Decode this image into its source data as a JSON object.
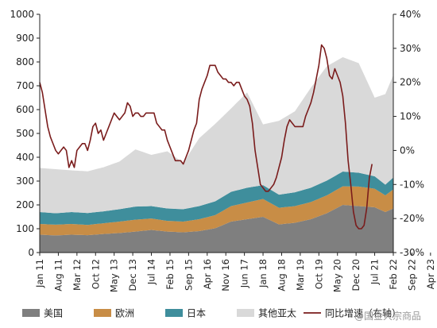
{
  "chart_data": {
    "type": "area",
    "x_labels": [
      "Jan 11",
      "Aug 11",
      "Mar 12",
      "Oct 12",
      "May 13",
      "Dec 13",
      "Jul 14",
      "Feb 15",
      "Sep 15",
      "Apr 16",
      "Nov 16",
      "Jun 17",
      "Jan 18",
      "Aug 18",
      "Mar 19",
      "Oct 19",
      "May 20",
      "Dec 20",
      "Jul 21",
      "Feb 22",
      "Sep 22",
      "Apr 23"
    ],
    "x_start": "2011-01",
    "x_end": "2023-10",
    "ylim_left": [
      0,
      1000
    ],
    "yticks_left": [
      "0",
      "100",
      "200",
      "300",
      "400",
      "500",
      "600",
      "700",
      "800",
      "900",
      "1000"
    ],
    "ylim_right": [
      -30,
      40
    ],
    "yticks_right": [
      "-30%",
      "-20%",
      "-10%",
      "0%",
      "10%",
      "20%",
      "30%",
      "40%"
    ],
    "series": [
      {
        "name": "美国",
        "type": "stacked-area",
        "color": "#7f7f7f",
        "points": [
          [
            0,
            75
          ],
          [
            6,
            72
          ],
          [
            12,
            75
          ],
          [
            18,
            73
          ],
          [
            24,
            78
          ],
          [
            30,
            82
          ],
          [
            36,
            88
          ],
          [
            42,
            95
          ],
          [
            48,
            88
          ],
          [
            54,
            85
          ],
          [
            60,
            90
          ],
          [
            66,
            102
          ],
          [
            72,
            130
          ],
          [
            78,
            140
          ],
          [
            84,
            150
          ],
          [
            90,
            118
          ],
          [
            96,
            125
          ],
          [
            102,
            140
          ],
          [
            108,
            165
          ],
          [
            114,
            200
          ],
          [
            120,
            195
          ],
          [
            126,
            190
          ],
          [
            130,
            170
          ],
          [
            133,
            185
          ]
        ]
      },
      {
        "name": "欧洲",
        "type": "stacked-area",
        "color": "#c88d46",
        "points": [
          [
            0,
            45
          ],
          [
            6,
            45
          ],
          [
            12,
            45
          ],
          [
            18,
            43
          ],
          [
            24,
            45
          ],
          [
            30,
            48
          ],
          [
            36,
            50
          ],
          [
            42,
            48
          ],
          [
            48,
            45
          ],
          [
            54,
            45
          ],
          [
            60,
            50
          ],
          [
            66,
            55
          ],
          [
            72,
            65
          ],
          [
            78,
            70
          ],
          [
            84,
            75
          ],
          [
            90,
            70
          ],
          [
            96,
            70
          ],
          [
            102,
            72
          ],
          [
            108,
            75
          ],
          [
            114,
            78
          ],
          [
            120,
            82
          ],
          [
            126,
            78
          ],
          [
            130,
            70
          ],
          [
            133,
            80
          ]
        ]
      },
      {
        "name": "日本",
        "type": "stacked-area",
        "color": "#3f8e9c",
        "points": [
          [
            0,
            50
          ],
          [
            6,
            48
          ],
          [
            12,
            50
          ],
          [
            18,
            50
          ],
          [
            24,
            50
          ],
          [
            30,
            52
          ],
          [
            36,
            55
          ],
          [
            42,
            52
          ],
          [
            48,
            52
          ],
          [
            54,
            52
          ],
          [
            60,
            55
          ],
          [
            66,
            58
          ],
          [
            72,
            60
          ],
          [
            78,
            62
          ],
          [
            84,
            58
          ],
          [
            90,
            55
          ],
          [
            96,
            58
          ],
          [
            102,
            60
          ],
          [
            108,
            62
          ],
          [
            114,
            62
          ],
          [
            120,
            58
          ],
          [
            126,
            52
          ],
          [
            130,
            45
          ],
          [
            133,
            50
          ]
        ]
      },
      {
        "name": "其他亚太",
        "type": "stacked-area",
        "color": "#d9d9d9",
        "points": [
          [
            0,
            185
          ],
          [
            6,
            185
          ],
          [
            12,
            175
          ],
          [
            18,
            175
          ],
          [
            24,
            185
          ],
          [
            30,
            200
          ],
          [
            36,
            240
          ],
          [
            42,
            215
          ],
          [
            48,
            240
          ],
          [
            54,
            195
          ],
          [
            60,
            285
          ],
          [
            66,
            325
          ],
          [
            72,
            350
          ],
          [
            78,
            400
          ],
          [
            84,
            255
          ],
          [
            90,
            310
          ],
          [
            96,
            340
          ],
          [
            102,
            420
          ],
          [
            108,
            480
          ],
          [
            114,
            480
          ],
          [
            120,
            460
          ],
          [
            126,
            330
          ],
          [
            130,
            380
          ],
          [
            133,
            430
          ]
        ]
      },
      {
        "name": "同比增速（右轴）",
        "type": "line",
        "axis": "right",
        "color": "#7a1c1c",
        "points": [
          [
            0,
            20
          ],
          [
            1,
            17
          ],
          [
            2,
            12
          ],
          [
            3,
            7
          ],
          [
            4,
            4
          ],
          [
            5,
            2
          ],
          [
            6,
            0
          ],
          [
            7,
            -1
          ],
          [
            8,
            0
          ],
          [
            9,
            1
          ],
          [
            10,
            0
          ],
          [
            11,
            -5
          ],
          [
            12,
            -3
          ],
          [
            13,
            -5
          ],
          [
            14,
            0
          ],
          [
            15,
            1
          ],
          [
            16,
            2
          ],
          [
            17,
            2
          ],
          [
            18,
            0
          ],
          [
            19,
            3
          ],
          [
            20,
            7
          ],
          [
            21,
            8
          ],
          [
            22,
            5
          ],
          [
            23,
            6
          ],
          [
            24,
            3
          ],
          [
            25,
            5
          ],
          [
            26,
            7
          ],
          [
            27,
            9
          ],
          [
            28,
            11
          ],
          [
            29,
            10
          ],
          [
            30,
            9
          ],
          [
            31,
            10
          ],
          [
            32,
            11
          ],
          [
            33,
            14
          ],
          [
            34,
            13
          ],
          [
            35,
            10
          ],
          [
            36,
            11
          ],
          [
            37,
            11
          ],
          [
            38,
            10
          ],
          [
            39,
            10
          ],
          [
            40,
            11
          ],
          [
            41,
            11
          ],
          [
            42,
            11
          ],
          [
            43,
            11
          ],
          [
            44,
            8
          ],
          [
            45,
            7
          ],
          [
            46,
            6
          ],
          [
            47,
            6
          ],
          [
            48,
            3
          ],
          [
            49,
            1
          ],
          [
            50,
            -1
          ],
          [
            51,
            -3
          ],
          [
            52,
            -3
          ],
          [
            53,
            -3
          ],
          [
            54,
            -4
          ],
          [
            55,
            -2
          ],
          [
            56,
            0
          ],
          [
            57,
            3
          ],
          [
            58,
            6
          ],
          [
            59,
            8
          ],
          [
            60,
            15
          ],
          [
            61,
            18
          ],
          [
            62,
            20
          ],
          [
            63,
            22
          ],
          [
            64,
            25
          ],
          [
            65,
            25
          ],
          [
            66,
            25
          ],
          [
            67,
            23
          ],
          [
            68,
            22
          ],
          [
            69,
            21
          ],
          [
            70,
            21
          ],
          [
            71,
            20
          ],
          [
            72,
            20
          ],
          [
            73,
            19
          ],
          [
            74,
            20
          ],
          [
            75,
            20
          ],
          [
            76,
            18
          ],
          [
            77,
            16
          ],
          [
            78,
            15
          ],
          [
            79,
            13
          ],
          [
            80,
            8
          ],
          [
            81,
            0
          ],
          [
            82,
            -5
          ],
          [
            83,
            -10
          ],
          [
            84,
            -11
          ],
          [
            85,
            -12
          ],
          [
            86,
            -12
          ],
          [
            87,
            -11
          ],
          [
            88,
            -10
          ],
          [
            89,
            -8
          ],
          [
            90,
            -5
          ],
          [
            91,
            -2
          ],
          [
            92,
            3
          ],
          [
            93,
            7
          ],
          [
            94,
            9
          ],
          [
            95,
            8
          ],
          [
            96,
            7
          ],
          [
            97,
            7
          ],
          [
            98,
            7
          ],
          [
            99,
            7
          ],
          [
            100,
            10
          ],
          [
            101,
            12
          ],
          [
            102,
            14
          ],
          [
            103,
            17
          ],
          [
            104,
            21
          ],
          [
            105,
            25
          ],
          [
            106,
            31
          ],
          [
            107,
            30
          ],
          [
            108,
            27
          ],
          [
            109,
            22
          ],
          [
            110,
            21
          ],
          [
            111,
            24
          ],
          [
            112,
            22
          ],
          [
            113,
            20
          ],
          [
            114,
            16
          ],
          [
            115,
            8
          ],
          [
            116,
            -3
          ],
          [
            117,
            -10
          ],
          [
            118,
            -18
          ],
          [
            119,
            -22
          ],
          [
            120,
            -23
          ],
          [
            121,
            -23
          ],
          [
            122,
            -22
          ],
          [
            123,
            -17
          ],
          [
            124,
            -8
          ],
          [
            125,
            -4
          ]
        ]
      }
    ],
    "legend_position": "bottom",
    "grid": false
  },
  "watermark": "@国金大宗商品",
  "colors": {
    "background": "#ffffff",
    "axis": "#222222"
  }
}
